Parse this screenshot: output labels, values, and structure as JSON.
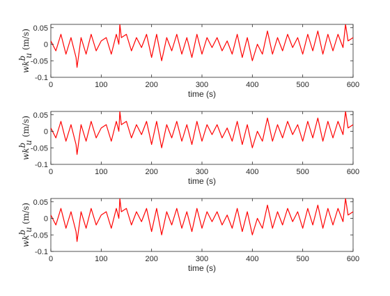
{
  "chart_data": [
    {
      "type": "line",
      "xlabel": "time (s)",
      "ylabel": {
        "symbol": "wk",
        "superscript": "b",
        "subscript": "u",
        "unit": "(m/s)"
      },
      "xlim": [
        0,
        600
      ],
      "ylim": [
        -0.1,
        0.06
      ],
      "xticks": [
        0,
        100,
        200,
        300,
        400,
        500,
        600
      ],
      "xtick_labels": [
        "0",
        "100",
        "200",
        "300",
        "400",
        "500",
        "600"
      ],
      "yticks": [
        0.05,
        0,
        -0.05,
        -0.1
      ],
      "ytick_labels": [
        "0.05",
        "0",
        "-0.05",
        "-0.1"
      ],
      "grid": false,
      "series": [
        {
          "color": "#ff0000",
          "x": [
            0,
            10,
            20,
            30,
            40,
            50,
            52,
            60,
            70,
            80,
            90,
            100,
            110,
            120,
            130,
            135,
            137,
            140,
            150,
            160,
            170,
            180,
            190,
            200,
            210,
            220,
            230,
            240,
            250,
            260,
            270,
            280,
            290,
            300,
            310,
            320,
            330,
            340,
            350,
            360,
            370,
            380,
            390,
            400,
            410,
            420,
            430,
            440,
            450,
            460,
            470,
            480,
            490,
            500,
            510,
            520,
            530,
            540,
            550,
            560,
            570,
            580,
            585,
            590,
            600
          ],
          "y": [
            0.01,
            -0.02,
            0.03,
            -0.03,
            0.02,
            -0.04,
            -0.07,
            0.02,
            -0.03,
            0.03,
            -0.02,
            0.01,
            0.02,
            -0.03,
            0.03,
            0.0,
            0.06,
            0.02,
            0.03,
            -0.02,
            0.02,
            -0.01,
            0.03,
            -0.04,
            0.03,
            -0.05,
            0.02,
            -0.02,
            0.03,
            -0.03,
            0.02,
            -0.04,
            0.03,
            -0.03,
            0.02,
            -0.01,
            0.02,
            -0.02,
            0.01,
            -0.03,
            0.03,
            -0.04,
            0.02,
            -0.05,
            0.0,
            -0.03,
            0.04,
            -0.03,
            0.02,
            -0.02,
            0.03,
            -0.01,
            0.02,
            -0.03,
            0.03,
            -0.02,
            0.04,
            -0.03,
            0.03,
            -0.02,
            0.03,
            -0.01,
            0.06,
            0.01,
            0.02
          ]
        }
      ]
    },
    {
      "type": "line",
      "xlabel": "time (s)",
      "ylabel": {
        "symbol": "wk",
        "superscript": "b",
        "subscript": "u",
        "unit": "(m/s)"
      },
      "xlim": [
        0,
        600
      ],
      "ylim": [
        -0.1,
        0.06
      ],
      "xticks": [
        0,
        100,
        200,
        300,
        400,
        500,
        600
      ],
      "xtick_labels": [
        "0",
        "100",
        "200",
        "300",
        "400",
        "500",
        "600"
      ],
      "yticks": [
        0.05,
        0,
        -0.05,
        -0.1
      ],
      "ytick_labels": [
        "0.05",
        "0",
        "-0.05",
        "-0.1"
      ],
      "grid": false,
      "series": [
        {
          "color": "#ff0000",
          "x": [
            0,
            10,
            20,
            30,
            40,
            50,
            52,
            60,
            70,
            80,
            90,
            100,
            110,
            120,
            130,
            135,
            137,
            140,
            150,
            160,
            170,
            180,
            190,
            200,
            210,
            220,
            230,
            240,
            250,
            260,
            270,
            280,
            290,
            300,
            310,
            320,
            330,
            340,
            350,
            360,
            370,
            380,
            390,
            400,
            410,
            420,
            430,
            440,
            450,
            460,
            470,
            480,
            490,
            500,
            510,
            520,
            530,
            540,
            550,
            560,
            570,
            580,
            585,
            590,
            600
          ],
          "y": [
            0.01,
            -0.02,
            0.03,
            -0.03,
            0.02,
            -0.04,
            -0.07,
            0.02,
            -0.03,
            0.03,
            -0.02,
            0.01,
            0.02,
            -0.03,
            0.03,
            0.0,
            0.06,
            0.02,
            0.03,
            -0.02,
            0.02,
            -0.01,
            0.03,
            -0.04,
            0.03,
            -0.05,
            0.02,
            -0.02,
            0.03,
            -0.03,
            0.02,
            -0.04,
            0.03,
            -0.03,
            0.02,
            -0.01,
            0.02,
            -0.02,
            0.01,
            -0.03,
            0.03,
            -0.04,
            0.02,
            -0.05,
            0.0,
            -0.03,
            0.04,
            -0.03,
            0.02,
            -0.02,
            0.03,
            -0.01,
            0.02,
            -0.03,
            0.03,
            -0.02,
            0.04,
            -0.03,
            0.03,
            -0.02,
            0.03,
            -0.01,
            0.06,
            0.01,
            0.02
          ]
        }
      ]
    },
    {
      "type": "line",
      "xlabel": "time (s)",
      "ylabel": {
        "symbol": "wk",
        "superscript": "b",
        "subscript": "u",
        "unit": "(m/s)"
      },
      "xlim": [
        0,
        600
      ],
      "ylim": [
        -0.1,
        0.06
      ],
      "xticks": [
        0,
        100,
        200,
        300,
        400,
        500,
        600
      ],
      "xtick_labels": [
        "0",
        "100",
        "200",
        "300",
        "400",
        "500",
        "600"
      ],
      "yticks": [
        0.05,
        0,
        -0.05,
        -0.1
      ],
      "ytick_labels": [
        "0.05",
        "0",
        "-0.05",
        "-0.1"
      ],
      "grid": false,
      "series": [
        {
          "color": "#ff0000",
          "x": [
            0,
            10,
            20,
            30,
            40,
            50,
            52,
            60,
            70,
            80,
            90,
            100,
            110,
            120,
            130,
            135,
            137,
            140,
            150,
            160,
            170,
            180,
            190,
            200,
            210,
            220,
            230,
            240,
            250,
            260,
            270,
            280,
            290,
            300,
            310,
            320,
            330,
            340,
            350,
            360,
            370,
            380,
            390,
            400,
            410,
            420,
            430,
            440,
            450,
            460,
            470,
            480,
            490,
            500,
            510,
            520,
            530,
            540,
            550,
            560,
            570,
            580,
            585,
            590,
            600
          ],
          "y": [
            0.01,
            -0.02,
            0.03,
            -0.03,
            0.02,
            -0.04,
            -0.07,
            0.02,
            -0.03,
            0.03,
            -0.02,
            0.01,
            0.02,
            -0.03,
            0.03,
            0.0,
            0.06,
            0.02,
            0.03,
            -0.02,
            0.02,
            -0.01,
            0.03,
            -0.04,
            0.03,
            -0.05,
            0.02,
            -0.02,
            0.03,
            -0.03,
            0.02,
            -0.04,
            0.03,
            -0.03,
            0.02,
            -0.01,
            0.02,
            -0.02,
            0.01,
            -0.03,
            0.03,
            -0.04,
            0.02,
            -0.05,
            0.0,
            -0.03,
            0.04,
            -0.03,
            0.02,
            -0.02,
            0.03,
            -0.01,
            0.02,
            -0.03,
            0.03,
            -0.02,
            0.04,
            -0.03,
            0.03,
            -0.02,
            0.03,
            -0.01,
            0.06,
            0.01,
            0.02
          ]
        }
      ]
    }
  ]
}
